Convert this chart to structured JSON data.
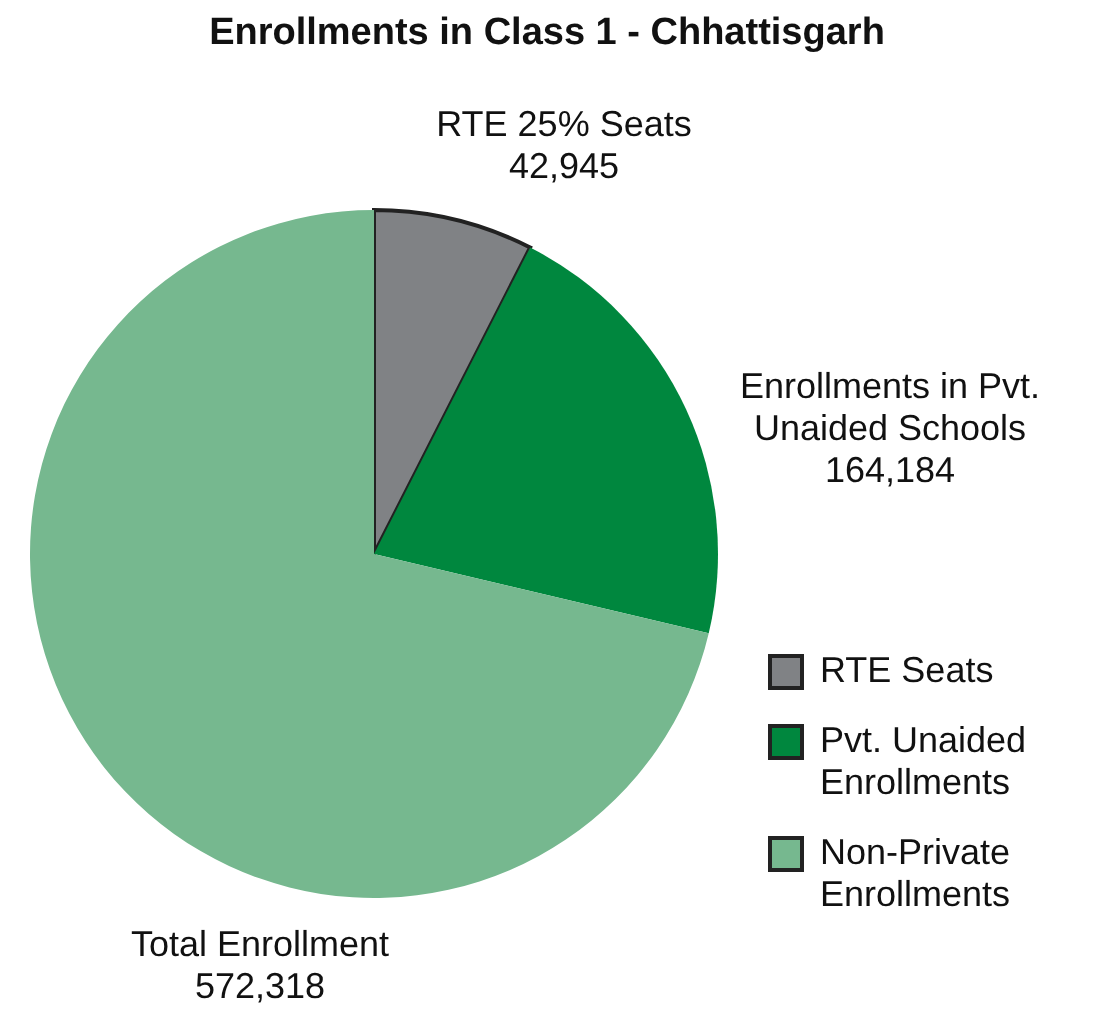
{
  "chart_data": {
    "type": "pie",
    "title": "Enrollments in Class 1 - Chhattisgarh",
    "categories": [
      "RTE Seats",
      "Pvt. Unaided Enrollments",
      "Non-Private Enrollments"
    ],
    "values": [
      7.5,
      21.2,
      71.3
    ],
    "colors": [
      "#808285",
      "#00873e",
      "#76b88f"
    ],
    "annotations": [
      "RTE 25% Seats",
      "42,945",
      "Enrollments in Pvt. Unaided Schools",
      "164,184",
      "Total Enrollment",
      "572,318"
    ],
    "legend": "right"
  }
}
